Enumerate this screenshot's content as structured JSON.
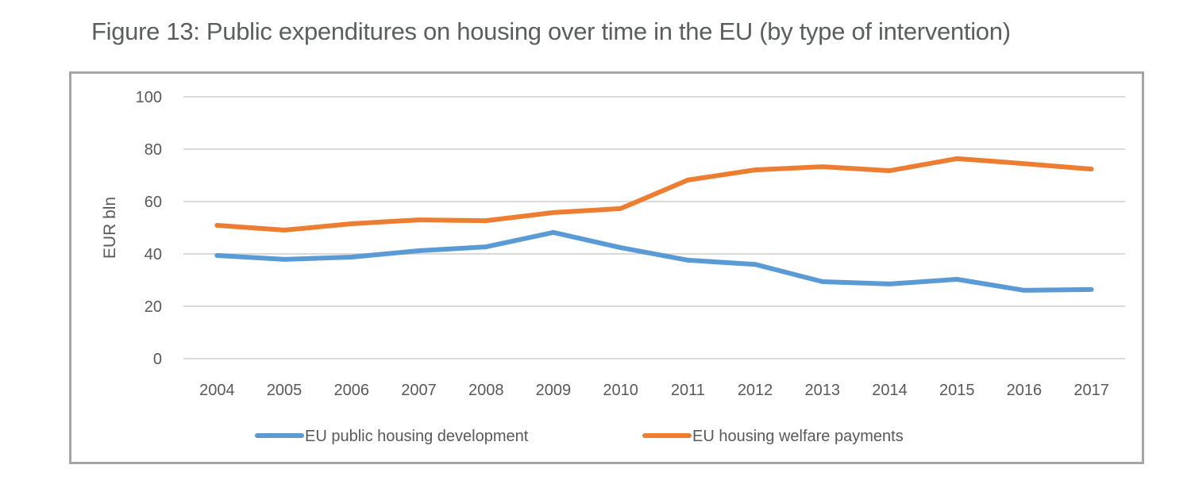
{
  "figure": {
    "title": "Figure 13: Public expenditures on housing over time in the EU (by type of intervention)"
  },
  "chart_data": {
    "type": "line",
    "title": "Figure 13: Public expenditures on housing over time in the EU (by type of intervention)",
    "xlabel": "",
    "ylabel": "EUR bln",
    "ylim": [
      0,
      100
    ],
    "yticks": [
      0,
      20,
      40,
      60,
      80,
      100
    ],
    "grid": true,
    "legend_position": "bottom",
    "categories": [
      "2004",
      "2005",
      "2006",
      "2007",
      "2008",
      "2009",
      "2010",
      "2011",
      "2012",
      "2013",
      "2014",
      "2015",
      "2016",
      "2017"
    ],
    "series": [
      {
        "name": "EU public housing development",
        "color": "#5b9bd5",
        "values": [
          39.4,
          37.9,
          38.8,
          41.2,
          42.7,
          48.2,
          42.4,
          37.6,
          36.0,
          29.4,
          28.5,
          30.3,
          26.1,
          26.4
        ]
      },
      {
        "name": "EU housing welfare payments",
        "color": "#ed7d31",
        "values": [
          50.9,
          49.1,
          51.5,
          53.0,
          52.7,
          55.8,
          57.3,
          68.2,
          72.1,
          73.3,
          71.8,
          76.4,
          74.5,
          72.4
        ]
      }
    ]
  }
}
